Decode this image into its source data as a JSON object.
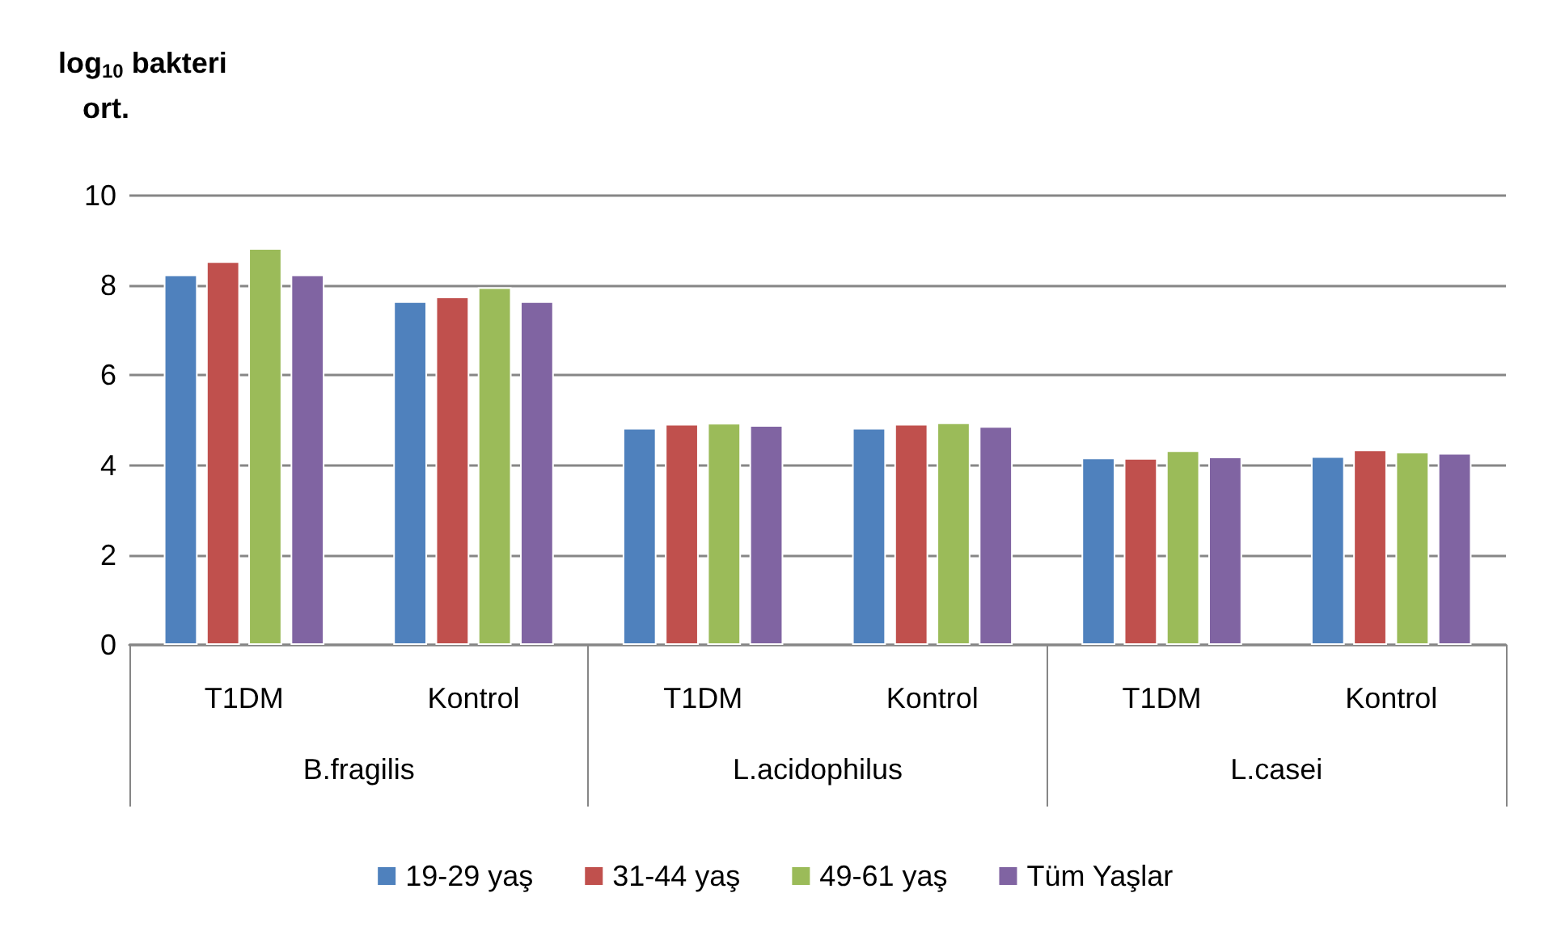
{
  "chart_data": {
    "type": "bar",
    "ylabel": "log$_{10}$ bakteri ort.",
    "categories": [
      "T1DM",
      "Kontrol",
      "T1DM",
      "Kontrol",
      "T1DM",
      "Kontrol"
    ],
    "annotations": [
      "B.fragilis",
      "L.acidophilus",
      "L.casei"
    ],
    "series": [
      {
        "name": "19-29 yaş",
        "color": "#4f81bd",
        "values": [
          8.24,
          7.65,
          4.83,
          4.83,
          4.17,
          4.2
        ]
      },
      {
        "name": "31-44 yaş",
        "color": "#c0504d",
        "values": [
          8.54,
          7.75,
          4.92,
          4.92,
          4.16,
          4.35
        ]
      },
      {
        "name": "49-61 yaş",
        "color": "#9bbb59",
        "values": [
          8.83,
          7.96,
          4.94,
          4.95,
          4.33,
          4.3
        ]
      },
      {
        "name": "Tüm Yaşlar",
        "color": "#8064a2",
        "values": [
          8.24,
          7.65,
          4.89,
          4.87,
          4.19,
          4.27
        ]
      }
    ],
    "ylim": [
      0,
      10
    ],
    "yticks": [
      0,
      2,
      4,
      6,
      8,
      10
    ],
    "grid": "y",
    "legend": "bottom"
  }
}
